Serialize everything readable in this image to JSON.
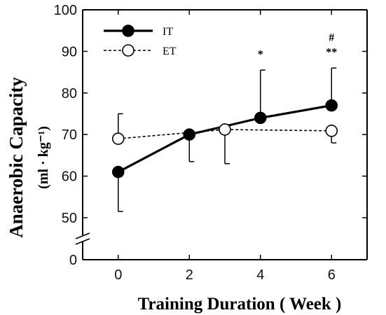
{
  "chart_data": {
    "type": "line",
    "xlabel": "Training Duration ( Week )",
    "ylabel": "Anaerobic Capacity",
    "ylabel_unit": "(ml · kg⁻¹)",
    "xlim": [
      -1,
      7
    ],
    "ylim": [
      42,
      100
    ],
    "x_ticks": [
      0,
      2,
      4,
      6
    ],
    "y_ticks": [
      50,
      60,
      70,
      80,
      90,
      100
    ],
    "y_zero_label": "0",
    "axis_break": true,
    "grid": false,
    "legend_position": "top-left",
    "series": [
      {
        "name": "IT",
        "marker": "filled-circle",
        "line": "solid",
        "color": "#000000",
        "x": [
          0,
          2,
          4,
          6
        ],
        "y": [
          61,
          70,
          74,
          77
        ],
        "err_upper": [
          null,
          null,
          85.5,
          86
        ],
        "err_lower": [
          51.5,
          63.5,
          null,
          null
        ]
      },
      {
        "name": "ET",
        "marker": "open-circle",
        "line": "dashed",
        "color": "#000000",
        "x": [
          0,
          3,
          6
        ],
        "y": [
          69,
          71.2,
          70.9
        ],
        "err_upper": [
          75,
          null,
          null
        ],
        "err_lower": [
          null,
          63,
          68
        ]
      }
    ],
    "annotations": [
      {
        "text": "*",
        "x": 4,
        "y": 88.5
      },
      {
        "text": "#",
        "x": 6,
        "y": 92.5
      },
      {
        "text": "**",
        "x": 6,
        "y": 89
      }
    ]
  }
}
